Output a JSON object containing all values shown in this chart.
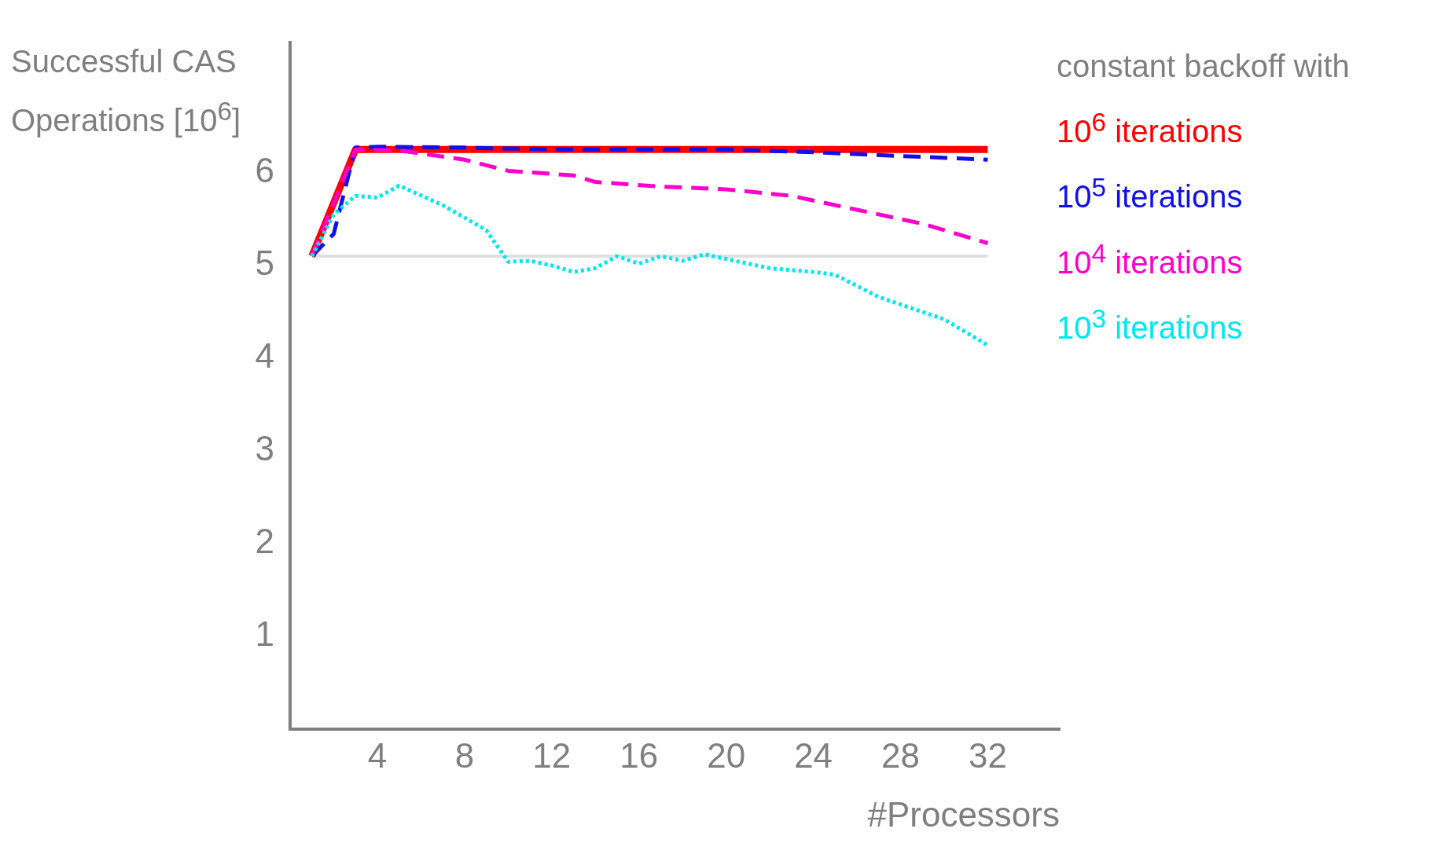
{
  "chart_data": {
    "type": "line",
    "ylabel": "Successful CAS Operations [10$^{6}$]",
    "xlabel": "#Processors",
    "legend_title": "constant backoff with",
    "legend": "right",
    "grid": false,
    "marker": "none",
    "xlim": [
      0,
      35.3
    ],
    "xticks": [
      4,
      8,
      12,
      16,
      20,
      24,
      28,
      32
    ],
    "ylim": [
      0,
      7.4
    ],
    "yticks": [
      1,
      2,
      3,
      4,
      5,
      6
    ],
    "ref_lines": [
      {
        "axis": "y",
        "value": 5.1,
        "color": "#e0e0e0"
      }
    ],
    "series": [
      {
        "name": "10$^{6}$ iterations",
        "color": "#ff0000",
        "line_style": "solid",
        "x": [
          1,
          3,
          32
        ],
        "values": [
          5.1,
          6.25,
          6.25
        ]
      },
      {
        "name": "10$^{5}$ iterations",
        "color": "#1010e8",
        "line_style": "dashed",
        "x": [
          1,
          2,
          3,
          4,
          8,
          12,
          16,
          20,
          24,
          28,
          32
        ],
        "values": [
          5.1,
          5.34,
          6.27,
          6.28,
          6.27,
          6.25,
          6.25,
          6.25,
          6.22,
          6.18,
          6.14
        ]
      },
      {
        "name": "10$^{4}$ iterations",
        "color": "#ff00cc",
        "line_style": "dashed",
        "x": [
          1,
          3,
          5,
          8,
          10,
          13,
          14,
          17,
          20,
          23,
          26,
          29,
          32
        ],
        "values": [
          5.1,
          6.25,
          6.24,
          6.14,
          6.02,
          5.97,
          5.9,
          5.85,
          5.82,
          5.75,
          5.6,
          5.45,
          5.24
        ]
      },
      {
        "name": "10$^{3}$ iterations",
        "color": "#00e8f0",
        "line_style": "dotted",
        "x": [
          1,
          2,
          3,
          4,
          5,
          7,
          9,
          10,
          11,
          12,
          13,
          14,
          15,
          16,
          17,
          18,
          19,
          20,
          21,
          22,
          24,
          25,
          27,
          30,
          32
        ],
        "values": [
          5.1,
          5.55,
          5.75,
          5.73,
          5.86,
          5.65,
          5.38,
          5.04,
          5.05,
          5.0,
          4.93,
          4.97,
          5.1,
          5.02,
          5.1,
          5.05,
          5.12,
          5.07,
          5.02,
          4.97,
          4.93,
          4.9,
          4.66,
          4.42,
          4.14
        ]
      }
    ]
  }
}
